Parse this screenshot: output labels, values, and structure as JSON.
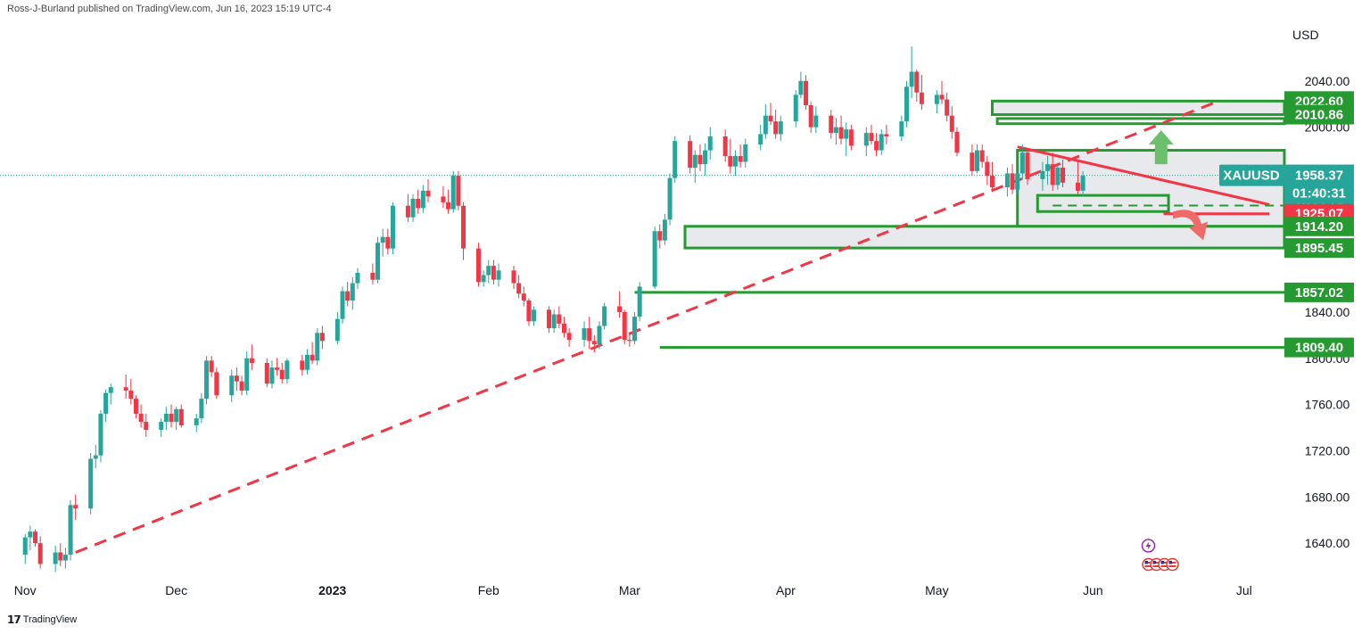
{
  "header": {
    "publisher": "Ross-J-Burland published on TradingView.com, Jun 16, 2023 15:19 UTC-4"
  },
  "footer": {
    "brand": "TradingView"
  },
  "colors": {
    "up": "#26a69a",
    "down": "#f23645",
    "zone": "#259a30",
    "trend": "#f23645",
    "zoneFill": "#dfe1e6",
    "arrowUp": "#6cc06c",
    "arrowDown": "#f06a6a"
  },
  "chart_data": {
    "type": "candlestick",
    "symbol": "XAUUSD",
    "currency": "USD",
    "y_unit": "USD",
    "ylim": [
      1610,
      2090
    ],
    "x_range_days": [
      -5,
      250
    ],
    "y_ticks": [
      "2040.00",
      "2000.00",
      "1840.00",
      "1800.00",
      "1760.00",
      "1720.00",
      "1680.00",
      "1640.00"
    ],
    "x_ticks": [
      {
        "label": "Nov",
        "day": 0
      },
      {
        "label": "Dec",
        "day": 30
      },
      {
        "label": "2023",
        "day": 61
      },
      {
        "label": "Feb",
        "day": 92
      },
      {
        "label": "Mar",
        "day": 120
      },
      {
        "label": "Apr",
        "day": 151
      },
      {
        "label": "May",
        "day": 181
      },
      {
        "label": "Jun",
        "day": 212
      },
      {
        "label": "Jul",
        "day": 242
      }
    ],
    "last_price": {
      "label": "XAUUSD",
      "value": "1958.37",
      "countdown": "01:40:31"
    },
    "price_labels": [
      {
        "value": "2022.60",
        "color": "#259a30"
      },
      {
        "value": "2010.86",
        "color": "#259a30"
      },
      {
        "value": "1932.14",
        "color": "#259a30"
      },
      {
        "value": "1925.07",
        "color": "#f23645"
      },
      {
        "value": "1914.20",
        "color": "#259a30"
      },
      {
        "value": "1895.45",
        "color": "#259a30"
      },
      {
        "value": "1857.02",
        "color": "#259a30"
      },
      {
        "value": "1809.40",
        "color": "#259a30"
      }
    ],
    "zones": [
      {
        "x0": 192,
        "x1": 250,
        "y0": 2010.86,
        "y1": 2022.6,
        "filled": true
      },
      {
        "x0": 193,
        "x1": 250,
        "y0": 2003,
        "y1": 2007.5,
        "filled": false
      },
      {
        "x0": 197,
        "x1": 250,
        "y0": 1914.2,
        "y1": 1980,
        "filled": true
      },
      {
        "x0": 201,
        "x1": 227,
        "y0": 1927,
        "y1": 1941,
        "filled": false
      },
      {
        "x0": 131,
        "x1": 250,
        "y0": 1895.45,
        "y1": 1914.2,
        "filled": true
      },
      {
        "x0": 121,
        "x1": 250,
        "y0": 1857.02,
        "y1": 1857.02,
        "filled": false
      },
      {
        "x0": 126,
        "x1": 250,
        "y0": 1809.4,
        "y1": 1809.4,
        "filled": false
      }
    ],
    "trendlines": [
      {
        "from": [
          10,
          1632
        ],
        "to": [
          236,
          2021
        ],
        "style": "dashed"
      },
      {
        "from": [
          197,
          1983
        ],
        "to": [
          247,
          1933
        ],
        "style": "solid"
      },
      {
        "from": [
          226,
          1925.07
        ],
        "to": [
          247,
          1925.07
        ],
        "style": "solid"
      },
      {
        "from": [
          204,
          1932.14
        ],
        "to": [
          250,
          1932.14
        ],
        "style": "dashed-green"
      }
    ],
    "ohlc": [
      [
        1630,
        1648,
        1622,
        1645
      ],
      [
        1645,
        1655,
        1634,
        1650
      ],
      [
        1650,
        1652,
        1637,
        1640
      ],
      [
        1640,
        1646,
        1618,
        1622
      ],
      [
        1622,
        1638,
        1615,
        1632
      ],
      [
        1632,
        1640,
        1620,
        1625
      ],
      [
        1625,
        1636,
        1618,
        1630
      ],
      [
        1630,
        1677,
        1625,
        1673
      ],
      [
        1673,
        1682,
        1660,
        1670
      ],
      [
        1670,
        1718,
        1665,
        1713
      ],
      [
        1713,
        1725,
        1705,
        1716
      ],
      [
        1716,
        1755,
        1710,
        1752
      ],
      [
        1752,
        1773,
        1745,
        1770
      ],
      [
        1770,
        1778,
        1760,
        1775
      ],
      [
        1775,
        1786,
        1765,
        1772
      ],
      [
        1772,
        1782,
        1760,
        1765
      ],
      [
        1765,
        1768,
        1748,
        1752
      ],
      [
        1752,
        1760,
        1740,
        1745
      ],
      [
        1745,
        1752,
        1732,
        1738
      ],
      [
        1738,
        1748,
        1732,
        1745
      ],
      [
        1745,
        1758,
        1738,
        1752
      ],
      [
        1752,
        1760,
        1740,
        1745
      ],
      [
        1745,
        1758,
        1738,
        1756
      ],
      [
        1756,
        1760,
        1740,
        1742
      ],
      [
        1742,
        1752,
        1736,
        1748
      ],
      [
        1748,
        1770,
        1744,
        1765
      ],
      [
        1765,
        1802,
        1760,
        1798
      ],
      [
        1798,
        1802,
        1784,
        1788
      ],
      [
        1788,
        1792,
        1765,
        1768
      ],
      [
        1768,
        1790,
        1762,
        1785
      ],
      [
        1785,
        1792,
        1772,
        1780
      ],
      [
        1780,
        1785,
        1768,
        1772
      ],
      [
        1772,
        1806,
        1768,
        1800
      ],
      [
        1800,
        1812,
        1790,
        1796
      ],
      [
        1796,
        1800,
        1775,
        1778
      ],
      [
        1778,
        1798,
        1774,
        1792
      ],
      [
        1792,
        1800,
        1785,
        1790
      ],
      [
        1790,
        1796,
        1778,
        1782
      ],
      [
        1782,
        1800,
        1778,
        1798
      ],
      [
        1798,
        1803,
        1785,
        1790
      ],
      [
        1790,
        1808,
        1786,
        1803
      ],
      [
        1803,
        1814,
        1795,
        1798
      ],
      [
        1798,
        1826,
        1794,
        1822
      ],
      [
        1822,
        1828,
        1808,
        1815
      ],
      [
        1815,
        1840,
        1812,
        1834
      ],
      [
        1834,
        1862,
        1830,
        1858
      ],
      [
        1858,
        1866,
        1845,
        1850
      ],
      [
        1850,
        1870,
        1842,
        1865
      ],
      [
        1865,
        1878,
        1860,
        1874
      ],
      [
        1874,
        1882,
        1864,
        1868
      ],
      [
        1868,
        1905,
        1865,
        1900
      ],
      [
        1900,
        1912,
        1888,
        1905
      ],
      [
        1905,
        1912,
        1890,
        1895
      ],
      [
        1895,
        1935,
        1890,
        1932
      ],
      [
        1932,
        1942,
        1918,
        1922
      ],
      [
        1922,
        1942,
        1918,
        1938
      ],
      [
        1938,
        1946,
        1925,
        1930
      ],
      [
        1930,
        1950,
        1926,
        1945
      ],
      [
        1945,
        1955,
        1935,
        1940
      ],
      [
        1940,
        1949,
        1930,
        1935
      ],
      [
        1935,
        1946,
        1925,
        1929
      ],
      [
        1929,
        1962,
        1926,
        1958
      ],
      [
        1958,
        1962,
        1928,
        1932
      ],
      [
        1932,
        1935,
        1885,
        1895
      ],
      [
        1895,
        1900,
        1862,
        1866
      ],
      [
        1866,
        1876,
        1862,
        1872
      ],
      [
        1872,
        1885,
        1865,
        1880
      ],
      [
        1880,
        1885,
        1864,
        1868
      ],
      [
        1868,
        1882,
        1862,
        1876
      ],
      [
        1876,
        1880,
        1860,
        1865
      ],
      [
        1865,
        1872,
        1852,
        1856
      ],
      [
        1856,
        1862,
        1845,
        1850
      ],
      [
        1850,
        1852,
        1828,
        1832
      ],
      [
        1832,
        1845,
        1828,
        1842
      ],
      [
        1842,
        1845,
        1822,
        1826
      ],
      [
        1826,
        1842,
        1822,
        1838
      ],
      [
        1838,
        1845,
        1826,
        1830
      ],
      [
        1830,
        1836,
        1818,
        1822
      ],
      [
        1822,
        1826,
        1810,
        1816
      ],
      [
        1816,
        1832,
        1810,
        1826
      ],
      [
        1826,
        1836,
        1808,
        1815
      ],
      [
        1815,
        1820,
        1805,
        1812
      ],
      [
        1812,
        1832,
        1808,
        1828
      ],
      [
        1828,
        1848,
        1825,
        1845
      ],
      [
        1845,
        1858,
        1835,
        1840
      ],
      [
        1840,
        1842,
        1812,
        1816
      ],
      [
        1816,
        1822,
        1810,
        1815
      ],
      [
        1815,
        1840,
        1812,
        1836
      ],
      [
        1836,
        1866,
        1832,
        1862
      ],
      [
        1862,
        1914,
        1860,
        1910
      ],
      [
        1910,
        1916,
        1895,
        1902
      ],
      [
        1902,
        1925,
        1898,
        1920
      ],
      [
        1920,
        1960,
        1915,
        1956
      ],
      [
        1956,
        1992,
        1952,
        1988
      ],
      [
        1988,
        1993,
        1960,
        1965
      ],
      [
        1965,
        1980,
        1952,
        1976
      ],
      [
        1976,
        1985,
        1962,
        1968
      ],
      [
        1968,
        1986,
        1958,
        1980
      ],
      [
        1980,
        2000,
        1972,
        1992
      ],
      [
        1992,
        1998,
        1970,
        1975
      ],
      [
        1975,
        1990,
        1960,
        1966
      ],
      [
        1966,
        1980,
        1958,
        1975
      ],
      [
        1975,
        1985,
        1965,
        1970
      ],
      [
        1970,
        1990,
        1965,
        1985
      ],
      [
        1985,
        2002,
        1980,
        1994
      ],
      [
        1994,
        2020,
        1990,
        2010
      ],
      [
        2010,
        2021,
        2002,
        2005
      ],
      [
        2005,
        2015,
        1990,
        1994
      ],
      [
        1994,
        2010,
        1988,
        2005
      ],
      [
        2005,
        2032,
        2000,
        2028
      ],
      [
        2028,
        2048,
        2025,
        2040
      ],
      [
        2040,
        2045,
        2015,
        2019
      ],
      [
        2019,
        2022,
        1995,
        2000
      ],
      [
        2000,
        2018,
        1995,
        2010
      ],
      [
        2010,
        2015,
        1990,
        1995
      ],
      [
        1995,
        2008,
        1985,
        2000
      ],
      [
        2000,
        2010,
        1985,
        1990
      ],
      [
        1990,
        2004,
        1975,
        1998
      ],
      [
        1998,
        2002,
        1980,
        1984
      ],
      [
        1984,
        2000,
        1975,
        1995
      ],
      [
        1995,
        2002,
        1985,
        1988
      ],
      [
        1988,
        1995,
        1975,
        1980
      ],
      [
        1980,
        1998,
        1976,
        1994
      ],
      [
        1994,
        2002,
        1985,
        1992
      ],
      [
        1992,
        2010,
        1988,
        2005
      ],
      [
        2005,
        2040,
        2000,
        2035
      ],
      [
        2035,
        2070,
        2025,
        2048
      ],
      [
        2048,
        2050,
        2022,
        2030
      ],
      [
        2030,
        2045,
        2015,
        2020
      ],
      [
        2020,
        2032,
        2012,
        2028
      ],
      [
        2028,
        2040,
        2020,
        2024
      ],
      [
        2024,
        2030,
        2005,
        2010
      ],
      [
        2010,
        2018,
        1990,
        1996
      ],
      [
        1996,
        2000,
        1975,
        1978
      ],
      [
        1978,
        1985,
        1958,
        1962
      ],
      [
        1962,
        1985,
        1960,
        1980
      ],
      [
        1980,
        1985,
        1965,
        1970
      ],
      [
        1970,
        1975,
        1950,
        1958
      ],
      [
        1958,
        1970,
        1945,
        1948
      ],
      [
        1948,
        1965,
        1940,
        1960
      ],
      [
        1960,
        1968,
        1942,
        1946
      ],
      [
        1946,
        1962,
        1942,
        1960
      ],
      [
        1960,
        1985,
        1955,
        1978
      ],
      [
        1978,
        1982,
        1950,
        1955
      ],
      [
        1955,
        1970,
        1945,
        1962
      ],
      [
        1962,
        1975,
        1950,
        1968
      ],
      [
        1968,
        1978,
        1945,
        1950
      ],
      [
        1950,
        1968,
        1946,
        1965
      ],
      [
        1965,
        1972,
        1948,
        1952
      ],
      [
        1952,
        1970,
        1942,
        1945
      ],
      [
        1945,
        1962,
        1940,
        1958
      ]
    ]
  }
}
